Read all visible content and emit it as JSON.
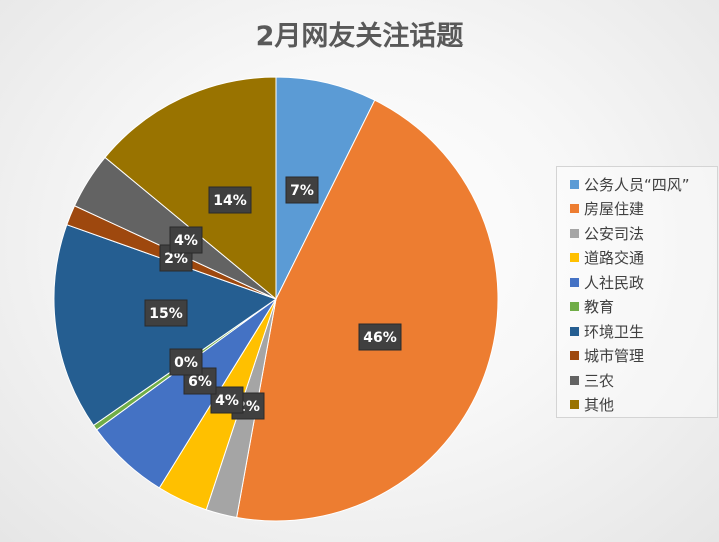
{
  "chart_data": {
    "type": "pie",
    "title": "2月网友关注话题",
    "legend_position": "right",
    "categories": [
      "公务人员“四风”",
      "房屋住建",
      "公安司法",
      "道路交通",
      "人社民政",
      "教育",
      "环境卫生",
      "城市管理",
      "三农",
      "其他"
    ],
    "values": [
      7.5,
      46.5,
      2.3,
      3.8,
      6.3,
      0.4,
      15.4,
      1.5,
      4.2,
      14.3
    ],
    "data_labels": [
      "7%",
      "46%",
      "2%",
      "4%",
      "6%",
      "0%",
      "15%",
      "2%",
      "4%",
      "14%"
    ],
    "colors": [
      "#5B9BD5",
      "#ED7D31",
      "#A5A5A5",
      "#FFC000",
      "#4472C4",
      "#70AD47",
      "#255E91",
      "#9E480E",
      "#636363",
      "#997300"
    ]
  }
}
